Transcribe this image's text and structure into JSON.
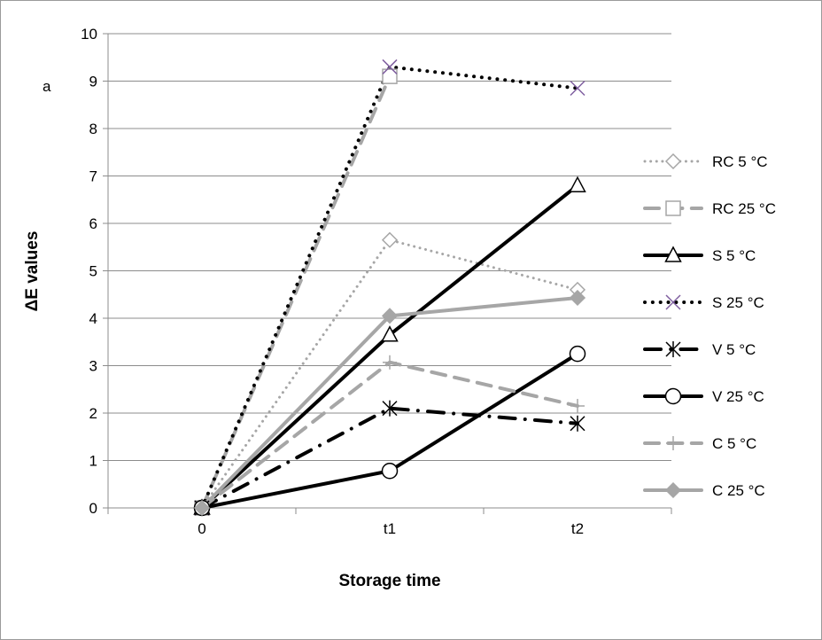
{
  "chart_data": {
    "type": "line",
    "panel_label": "a",
    "xlabel": "Storage time",
    "ylabel": "ΔE values",
    "categories": [
      "0",
      "t1",
      "t2"
    ],
    "ylim": [
      0,
      10
    ],
    "yticks": [
      0,
      1,
      2,
      3,
      4,
      5,
      6,
      7,
      8,
      9,
      10
    ],
    "grid": true,
    "legend_position": "right",
    "series": [
      {
        "name": "RC 5 °C",
        "values": [
          0,
          5.65,
          4.6
        ],
        "color": "#a6a6a6",
        "dash": "dot",
        "width": 3,
        "marker": "diamond-open"
      },
      {
        "name": "RC 25 °C",
        "values": [
          0,
          9.1,
          null
        ],
        "color": "#a6a6a6",
        "dash": "dash",
        "width": 4,
        "marker": "square-open"
      },
      {
        "name": "S 5 °C",
        "values": [
          0,
          3.65,
          6.8
        ],
        "color": "#000000",
        "dash": "solid",
        "width": 4,
        "marker": "triangle-open"
      },
      {
        "name": "S 25 °C",
        "values": [
          0,
          9.3,
          8.85
        ],
        "color": "#000000",
        "dash": "dot",
        "width": 4,
        "marker": "x",
        "marker_color": "#7f5f9f"
      },
      {
        "name": "V 5 °C",
        "values": [
          0,
          2.1,
          1.78
        ],
        "color": "#000000",
        "dash": "dashdot",
        "width": 4,
        "marker": "asterisk"
      },
      {
        "name": "V 25 °C",
        "values": [
          0,
          0.78,
          3.25
        ],
        "color": "#000000",
        "dash": "solid",
        "width": 4,
        "marker": "circle-open"
      },
      {
        "name": "C 5 °C",
        "values": [
          0,
          3.07,
          2.15
        ],
        "color": "#a6a6a6",
        "dash": "dash",
        "width": 4,
        "marker": "plus"
      },
      {
        "name": "C 25 °C",
        "values": [
          0,
          4.05,
          4.43
        ],
        "color": "#a6a6a6",
        "dash": "solid",
        "width": 4,
        "marker": "diamond-filled"
      }
    ]
  }
}
